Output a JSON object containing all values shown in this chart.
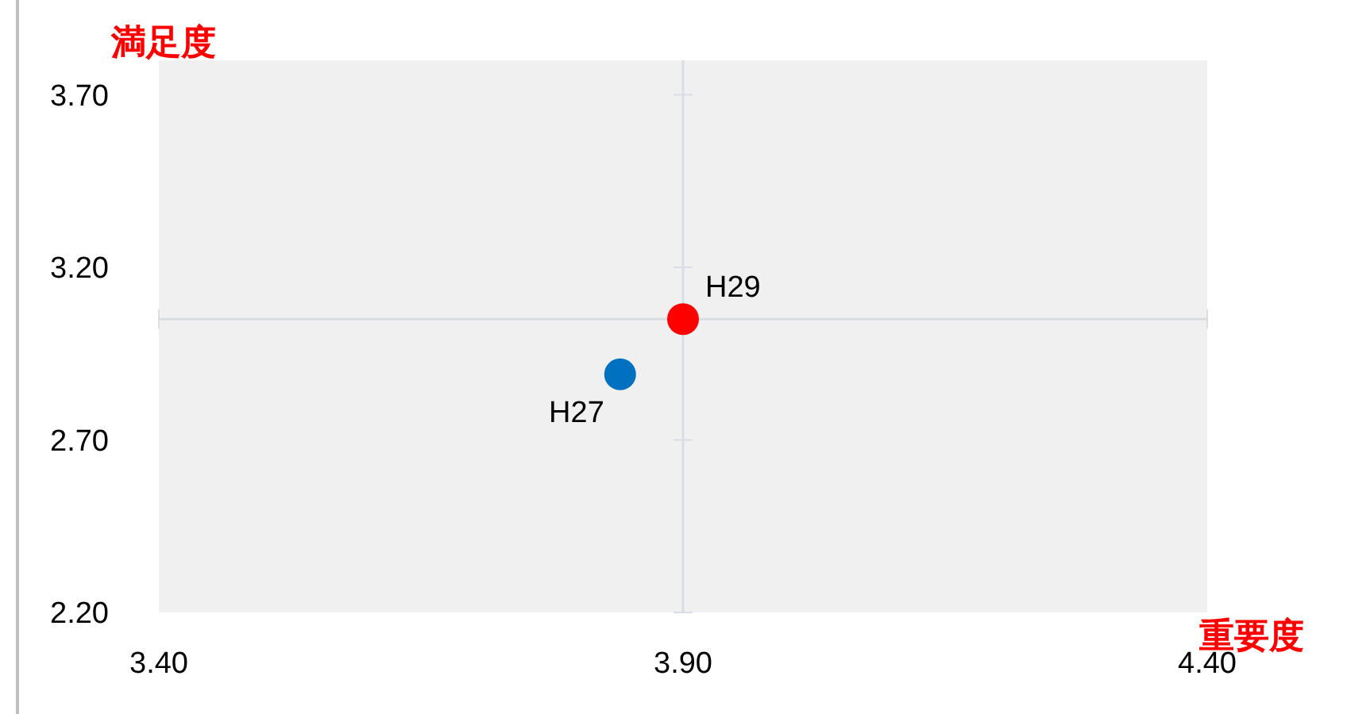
{
  "chart_data": {
    "type": "scatter",
    "xlabel": "重要度",
    "ylabel": "満足度",
    "xlim": [
      3.4,
      4.4
    ],
    "xticks": [
      {
        "value": 3.4,
        "label": "3.40"
      },
      {
        "value": 3.9,
        "label": "3.90"
      },
      {
        "value": 4.4,
        "label": "4.40"
      }
    ],
    "ylim": [
      2.2,
      3.8
    ],
    "yticks": [
      {
        "value": 2.2,
        "label": "2.20"
      },
      {
        "value": 2.7,
        "label": "2.70"
      },
      {
        "value": 3.2,
        "label": "3.20"
      },
      {
        "value": 3.7,
        "label": "3.70"
      }
    ],
    "marker": "circle",
    "grid": false,
    "ref_lines": [
      {
        "axis": "x",
        "value": 3.9,
        "color": "#d9dde6"
      },
      {
        "axis": "y",
        "value": 3.05,
        "color": "#d9dde6"
      }
    ],
    "series": [
      {
        "name": "H27",
        "color": "#0070c0",
        "x": [
          3.84
        ],
        "values": [
          2.89
        ]
      },
      {
        "name": "H29",
        "color": "#ff0000",
        "x": [
          3.9
        ],
        "values": [
          3.05
        ]
      }
    ]
  }
}
